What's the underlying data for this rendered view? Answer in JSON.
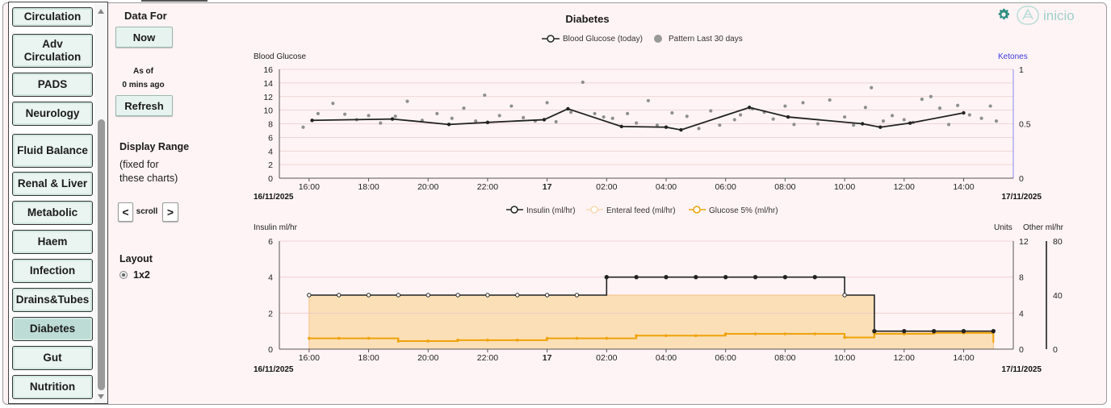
{
  "sidebar": {
    "items": [
      {
        "label": "Circulation"
      },
      {
        "label": "Adv Circulation"
      },
      {
        "label": "PADS"
      },
      {
        "label": "Neurology"
      },
      {
        "label": "Fluid Balance"
      },
      {
        "label": "Renal & Liver"
      },
      {
        "label": "Metabolic"
      },
      {
        "label": "Haem"
      },
      {
        "label": "Infection"
      },
      {
        "label": "Drains&Tubes"
      },
      {
        "label": "Diabetes",
        "active": true
      },
      {
        "label": "Gut"
      },
      {
        "label": "Nutrition"
      }
    ]
  },
  "controls": {
    "data_for_label": "Data For",
    "now_button": "Now",
    "as_of_label": "As of",
    "ago_label": "0 mins ago",
    "refresh_button": "Refresh",
    "display_range_label": "Display Range",
    "fixed_note_1": "(fixed for",
    "fixed_note_2": "these charts)",
    "scroll_prev": "<",
    "scroll_label": "scroll",
    "scroll_next": ">",
    "layout_label": "Layout",
    "layout_option": "1x2"
  },
  "header": {
    "title": "Diabetes",
    "logo_text": "inicio",
    "accent_color": "#2f8f83"
  },
  "chart_data": [
    {
      "type": "line",
      "title": "Diabetes",
      "ylabel": "Blood Glucose",
      "y2label": "Ketones",
      "ylim": [
        0,
        16
      ],
      "y2lim": [
        0,
        1
      ],
      "yticks": [
        "0",
        "2",
        "4",
        "6",
        "8",
        "10",
        "12",
        "14",
        "16"
      ],
      "y2ticks": [
        "0",
        "0.5",
        "1"
      ],
      "xticks": [
        "16:00",
        "18:00",
        "20:00",
        "22:00",
        "17",
        "02:00",
        "04:00",
        "06:00",
        "08:00",
        "10:00",
        "12:00",
        "14:00"
      ],
      "x_start_label": "16/11/2025",
      "x_end_label": "17/11/2025",
      "legend": {
        "placement": "top-center",
        "items": [
          "Blood Glucose (today)",
          "Pattern Last 30 days"
        ]
      },
      "series": [
        {
          "name": "Blood Glucose (today)",
          "color": "#222222",
          "points": [
            [
              16.1,
              8.5
            ],
            [
              18.8,
              8.7
            ],
            [
              20.7,
              7.9
            ],
            [
              22.0,
              8.2
            ],
            [
              23.9,
              8.6
            ],
            [
              24.7,
              10.2
            ],
            [
              26.5,
              7.6
            ],
            [
              28.0,
              7.5
            ],
            [
              28.5,
              7.1
            ],
            [
              30.8,
              10.4
            ],
            [
              32.1,
              9.0
            ],
            [
              34.6,
              8.0
            ],
            [
              35.2,
              7.5
            ],
            [
              36.2,
              8.1
            ],
            [
              38.0,
              9.6
            ]
          ]
        },
        {
          "name": "Pattern Last 30 days",
          "color": "#888888",
          "points": [
            [
              15.8,
              7.5
            ],
            [
              16.3,
              9.5
            ],
            [
              16.8,
              11.0
            ],
            [
              17.2,
              9.4
            ],
            [
              17.6,
              8.6
            ],
            [
              18.0,
              9.2
            ],
            [
              18.4,
              8.1
            ],
            [
              18.9,
              9.1
            ],
            [
              19.3,
              11.3
            ],
            [
              19.8,
              8.5
            ],
            [
              20.3,
              9.5
            ],
            [
              20.8,
              8.8
            ],
            [
              21.2,
              10.3
            ],
            [
              21.6,
              8.4
            ],
            [
              21.9,
              12.2
            ],
            [
              22.4,
              9.2
            ],
            [
              22.8,
              10.6
            ],
            [
              23.2,
              8.9
            ],
            [
              23.6,
              8.4
            ],
            [
              24.0,
              11.1
            ],
            [
              24.3,
              8.3
            ],
            [
              24.8,
              9.7
            ],
            [
              25.2,
              14.1
            ],
            [
              25.6,
              9.5
            ],
            [
              25.9,
              9.0
            ],
            [
              26.2,
              8.8
            ],
            [
              26.7,
              9.5
            ],
            [
              27.0,
              8.1
            ],
            [
              27.4,
              11.4
            ],
            [
              27.7,
              7.8
            ],
            [
              28.2,
              9.6
            ],
            [
              28.7,
              9.1
            ],
            [
              29.1,
              7.3
            ],
            [
              29.5,
              9.9
            ],
            [
              29.8,
              7.8
            ],
            [
              30.3,
              8.6
            ],
            [
              30.5,
              9.3
            ],
            [
              30.9,
              10.2
            ],
            [
              31.3,
              9.7
            ],
            [
              31.6,
              8.7
            ],
            [
              32.0,
              10.6
            ],
            [
              32.3,
              7.9
            ],
            [
              32.6,
              11.1
            ],
            [
              33.1,
              8.0
            ],
            [
              33.5,
              11.5
            ],
            [
              34.0,
              9.0
            ],
            [
              34.3,
              7.8
            ],
            [
              34.7,
              10.4
            ],
            [
              34.9,
              13.3
            ],
            [
              35.3,
              8.4
            ],
            [
              35.6,
              9.2
            ],
            [
              36.0,
              8.6
            ],
            [
              36.3,
              8.2
            ],
            [
              36.6,
              11.6
            ],
            [
              36.9,
              12.0
            ],
            [
              37.2,
              10.3
            ],
            [
              37.5,
              7.9
            ],
            [
              37.8,
              10.7
            ],
            [
              38.2,
              9.3
            ],
            [
              38.6,
              8.8
            ],
            [
              38.9,
              10.6
            ],
            [
              39.1,
              8.4
            ]
          ]
        }
      ]
    },
    {
      "type": "line",
      "ylabel": "Insulin ml/hr",
      "y2label": "Units",
      "y3label": "Other ml/hr",
      "ylim": [
        0,
        6
      ],
      "y2lim": [
        0,
        12
      ],
      "y3lim": [
        0,
        80
      ],
      "yticks": [
        "0",
        "2",
        "4",
        "6"
      ],
      "y2ticks": [
        "0",
        "4",
        "8",
        "12"
      ],
      "y3ticks": [
        "0",
        "40",
        "80"
      ],
      "xticks": [
        "16:00",
        "18:00",
        "20:00",
        "22:00",
        "17",
        "02:00",
        "04:00",
        "06:00",
        "08:00",
        "10:00",
        "12:00",
        "14:00"
      ],
      "x_start_label": "16/11/2025",
      "x_end_label": "17/11/2025",
      "legend": {
        "placement": "top-center",
        "items": [
          "Insulin (ml/hr)",
          "Enteral feed (ml/hr)",
          "Glucose 5% (ml/hr)"
        ]
      },
      "series": [
        {
          "name": "Insulin (ml/hr)",
          "color": "#222222",
          "step": true,
          "points": [
            [
              16,
              3
            ],
            [
              17,
              3
            ],
            [
              18,
              3
            ],
            [
              19,
              3
            ],
            [
              20,
              3
            ],
            [
              21,
              3
            ],
            [
              22,
              3
            ],
            [
              23,
              3
            ],
            [
              24,
              3
            ],
            [
              25,
              3
            ],
            [
              26,
              4
            ],
            [
              27,
              4
            ],
            [
              28,
              4
            ],
            [
              29,
              4
            ],
            [
              30,
              4
            ],
            [
              31,
              4
            ],
            [
              32,
              4
            ],
            [
              33,
              4
            ],
            [
              34,
              3
            ],
            [
              35,
              1
            ],
            [
              36,
              1
            ],
            [
              37,
              1
            ],
            [
              38,
              1
            ],
            [
              39,
              1
            ]
          ]
        },
        {
          "name": "Enteral feed (ml/hr)",
          "color": "#f5c07a",
          "step": true,
          "area": true,
          "points": [
            [
              16,
              3
            ],
            [
              35,
              3
            ],
            [
              35,
              1
            ],
            [
              39,
              1
            ]
          ]
        },
        {
          "name": "Glucose 5% (ml/hr)",
          "color": "#f0a30a",
          "step": true,
          "points": [
            [
              16,
              0.6
            ],
            [
              19,
              0.6
            ],
            [
              19,
              0.45
            ],
            [
              21,
              0.45
            ],
            [
              21,
              0.5
            ],
            [
              24,
              0.55
            ],
            [
              24,
              0.6
            ],
            [
              27,
              0.65
            ],
            [
              27,
              0.75
            ],
            [
              30,
              0.8
            ],
            [
              30,
              0.85
            ],
            [
              34,
              0.85
            ],
            [
              34,
              0.65
            ],
            [
              35,
              0.65
            ],
            [
              35,
              0.85
            ],
            [
              37,
              0.85
            ],
            [
              37,
              0.9
            ],
            [
              39,
              0.9
            ],
            [
              39,
              0.35
            ]
          ]
        }
      ]
    }
  ]
}
